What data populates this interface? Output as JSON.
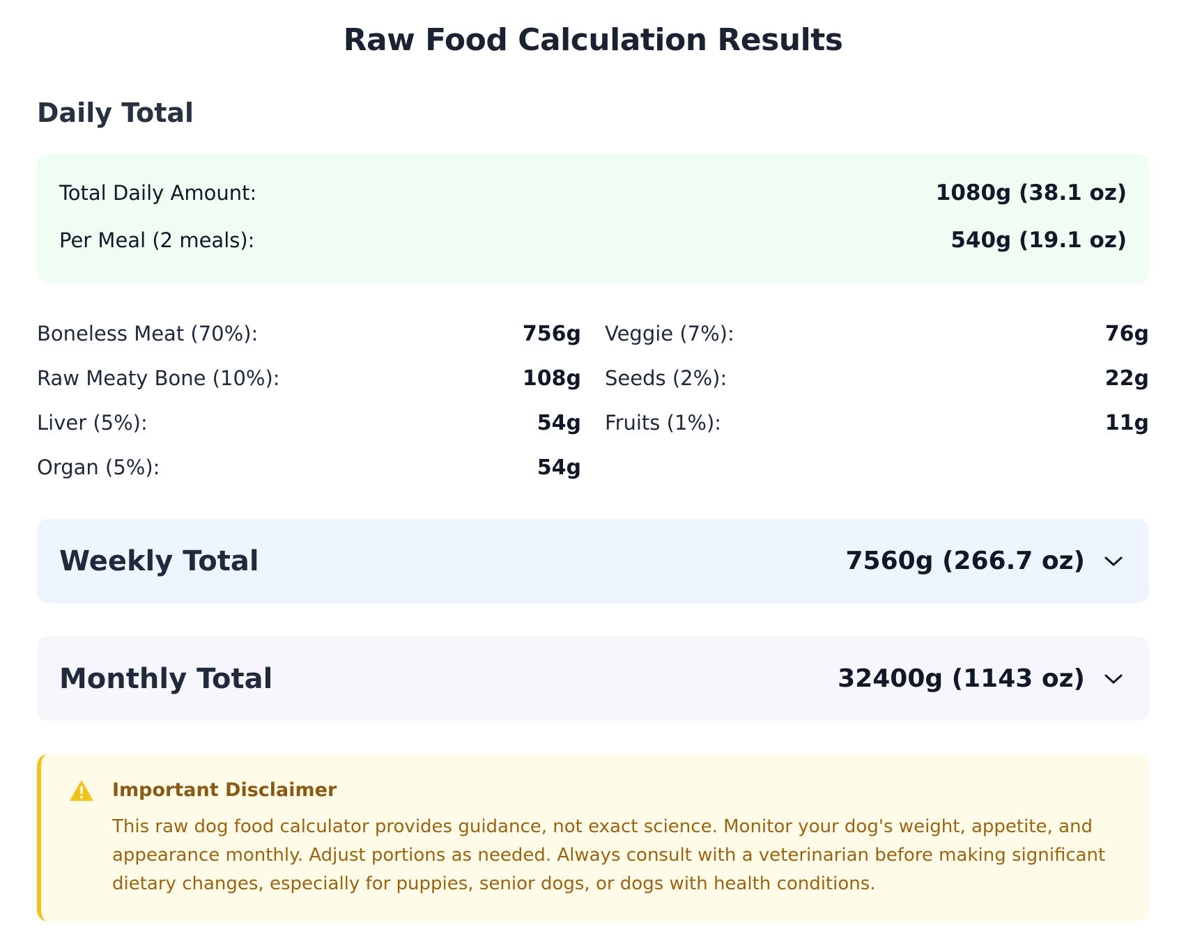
{
  "title": "Raw Food Calculation Results",
  "daily": {
    "heading": "Daily Total",
    "total_label": "Total Daily Amount:",
    "total_value": "1080g (38.1 oz)",
    "per_meal_label": "Per Meal (2 meals):",
    "per_meal_value": "540g (19.1 oz)"
  },
  "breakdown": {
    "left": [
      {
        "label": "Boneless Meat (70%):",
        "value": "756g"
      },
      {
        "label": "Raw Meaty Bone (10%):",
        "value": "108g"
      },
      {
        "label": "Liver (5%):",
        "value": "54g"
      },
      {
        "label": "Organ (5%):",
        "value": "54g"
      }
    ],
    "right": [
      {
        "label": "Veggie (7%):",
        "value": "76g"
      },
      {
        "label": "Seeds (2%):",
        "value": "22g"
      },
      {
        "label": "Fruits (1%):",
        "value": "11g"
      }
    ]
  },
  "weekly": {
    "title": "Weekly Total",
    "value": "7560g (266.7 oz)",
    "icon": "chevron-down-icon"
  },
  "monthly": {
    "title": "Monthly Total",
    "value": "32400g (1143 oz)",
    "icon": "chevron-down-icon"
  },
  "disclaimer": {
    "icon": "warning-icon",
    "title": "Important Disclaimer",
    "text": "This raw dog food calculator provides guidance, not exact science. Monitor your dog's weight, appetite, and appearance monthly. Adjust portions as needed. Always consult with a veterinarian before making significant dietary changes, especially for puppies, senior dogs, or dogs with health conditions."
  },
  "colors": {
    "daily_bg": "#effdf3",
    "weekly_bg": "#eef5fe",
    "monthly_bg": "#f8f6fd",
    "disclaimer_bg": "#fefbe8",
    "disclaimer_accent": "#f2c318",
    "disclaimer_text": "#9a6410"
  }
}
